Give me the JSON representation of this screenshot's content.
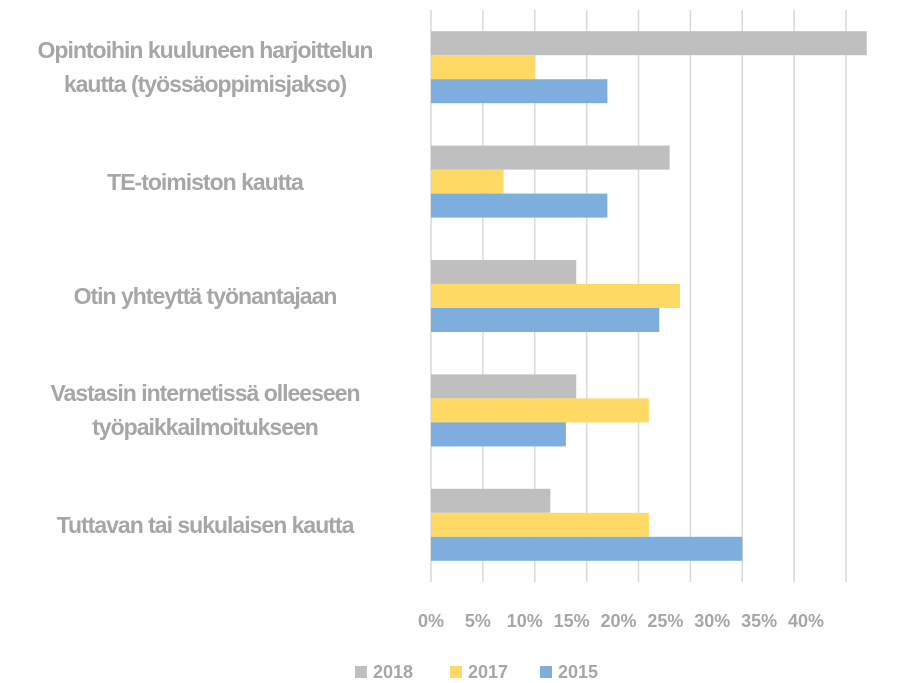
{
  "chart_data": {
    "type": "barh",
    "categories": [
      "Opintoihin kuuluneen harjoittelun kautta (työssäoppimisjakso)",
      "TE-toimiston kautta",
      "Otin yhteyttä työnantajaan",
      "Vastasin internetissä olleeseen työpaikkailmoitukseen",
      "Tuttavan tai sukulaisen kautta"
    ],
    "series": [
      {
        "name": "2018",
        "color": "#bfbfbf",
        "values": [
          42,
          23,
          14,
          14,
          11.5
        ]
      },
      {
        "name": "2017",
        "color": "#ffd966",
        "values": [
          10,
          7,
          24,
          21,
          21
        ]
      },
      {
        "name": "2015",
        "color": "#7eaedd",
        "values": [
          17,
          17,
          22,
          13,
          30
        ]
      }
    ],
    "xlim": [
      0,
      40
    ],
    "xticks": [
      {
        "value": 0,
        "label": "0%"
      },
      {
        "value": 5,
        "label": "5%"
      },
      {
        "value": 10,
        "label": "10%"
      },
      {
        "value": 15,
        "label": "15%"
      },
      {
        "value": 20,
        "label": "20%"
      },
      {
        "value": 25,
        "label": "25%"
      },
      {
        "value": 30,
        "label": "30%"
      },
      {
        "value": 35,
        "label": "35%"
      },
      {
        "value": 40,
        "label": "40%"
      }
    ],
    "grid": true,
    "legend": "bottom"
  }
}
